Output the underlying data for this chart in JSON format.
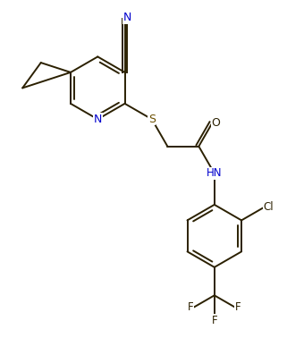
{
  "bg_color": "#ffffff",
  "bond_color": "#2b2000",
  "atom_colors": {
    "N": "#0000cd",
    "S": "#6b4f00",
    "O": "#2b2000",
    "Cl": "#2b2000",
    "F": "#2b2000",
    "C": "#2b2000"
  },
  "line_width": 1.4,
  "font_size": 8.5,
  "figsize": [
    3.21,
    3.78
  ],
  "dpi": 100
}
